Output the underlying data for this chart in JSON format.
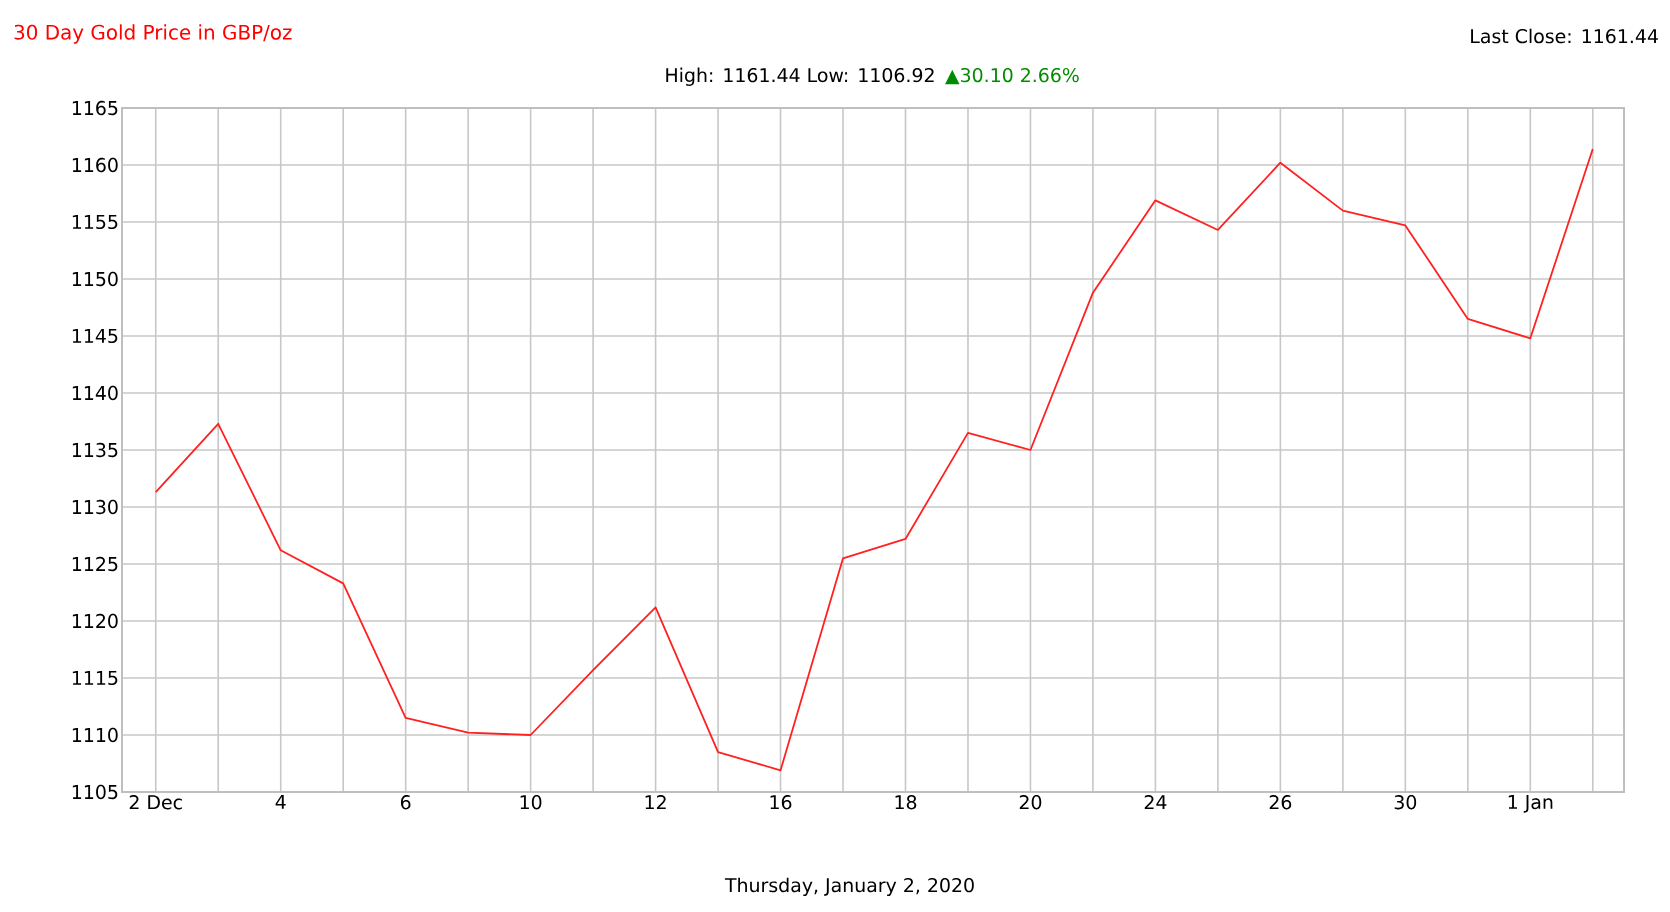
{
  "chart_data": {
    "type": "line",
    "title": "30 Day Gold Price in GBP/oz",
    "subtitle": "High: 1161.44 Low: 1106.92",
    "annotations": [
      "▲30.10 2.66%",
      "Last Close: 1161.44",
      "Thursday, January 2, 2020"
    ],
    "categories": [
      "2 Dec",
      null,
      "4",
      null,
      "6",
      null,
      "10",
      null,
      "12",
      null,
      "16",
      null,
      "18",
      null,
      "20",
      null,
      "24",
      null,
      "26",
      null,
      "30",
      null,
      "1 Jan",
      null
    ],
    "values": [
      1131.3,
      1137.3,
      1126.2,
      1123.3,
      1111.5,
      1110.2,
      1110.0,
      1115.7,
      1121.2,
      1108.5,
      1106.9,
      1125.5,
      1127.2,
      1136.5,
      1135.0,
      1148.8,
      1156.9,
      1154.3,
      1160.2,
      1156.0,
      1154.7,
      1146.5,
      1144.8,
      1161.4
    ],
    "color": "#ff2020",
    "ylim": [
      1105,
      1165
    ],
    "yticks": [
      1105,
      1110,
      1115,
      1120,
      1125,
      1130,
      1135,
      1140,
      1145,
      1150,
      1155,
      1160,
      1165
    ],
    "grid": true
  }
}
